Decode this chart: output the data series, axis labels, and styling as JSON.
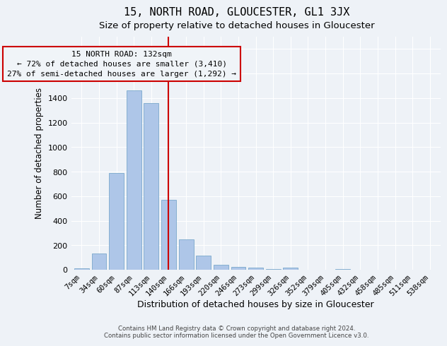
{
  "title": "15, NORTH ROAD, GLOUCESTER, GL1 3JX",
  "subtitle": "Size of property relative to detached houses in Gloucester",
  "xlabel": "Distribution of detached houses by size in Gloucester",
  "ylabel": "Number of detached properties",
  "footnote1": "Contains HM Land Registry data © Crown copyright and database right 2024.",
  "footnote2": "Contains public sector information licensed under the Open Government Licence v3.0.",
  "categories": [
    "7sqm",
    "34sqm",
    "60sqm",
    "87sqm",
    "113sqm",
    "140sqm",
    "166sqm",
    "193sqm",
    "220sqm",
    "246sqm",
    "273sqm",
    "299sqm",
    "326sqm",
    "352sqm",
    "379sqm",
    "405sqm",
    "432sqm",
    "458sqm",
    "485sqm",
    "511sqm",
    "538sqm"
  ],
  "bar_heights": [
    10,
    130,
    790,
    1460,
    1360,
    570,
    245,
    115,
    38,
    25,
    18,
    5,
    15,
    0,
    0,
    5,
    0,
    0,
    0,
    0,
    0
  ],
  "bar_color": "#aec6e8",
  "bar_edge_color": "#7aa8cc",
  "ylim": [
    0,
    1900
  ],
  "yticks": [
    0,
    200,
    400,
    600,
    800,
    1000,
    1200,
    1400,
    1600,
    1800
  ],
  "vline_x_index": 5,
  "vline_color": "#cc0000",
  "ann_line1": "15 NORTH ROAD: 132sqm",
  "ann_line2": "← 72% of detached houses are smaller (3,410)",
  "ann_line3": "27% of semi-detached houses are larger (1,292) →",
  "ann_box_facecolor": "#f0f4f8",
  "ann_box_edgecolor": "#cc0000",
  "background_color": "#eef2f7",
  "grid_color": "#ffffff",
  "title_fontsize": 11,
  "subtitle_fontsize": 9.5,
  "annotation_fontsize": 8,
  "ylabel_fontsize": 8.5,
  "xlabel_fontsize": 9,
  "tick_fontsize": 7.5,
  "ytick_fontsize": 8
}
